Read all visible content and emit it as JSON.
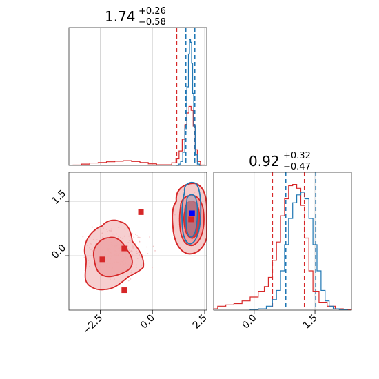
{
  "chart_data": {
    "type": "scatter",
    "subtype": "corner-plot",
    "colors": {
      "red": "#d62728",
      "blue": "#1f77b4",
      "red_fill": "#eea6a7",
      "blue_fill": "#8bb8d8",
      "grid": "#cccccc"
    },
    "panels": [
      {
        "id": "hist_param1",
        "type": "histogram",
        "title": {
          "value": "1.74",
          "upper": "+0.26",
          "lower": "−0.58"
        },
        "xlim": [
          -4.0,
          2.6
        ],
        "grid": true,
        "quantile_lines": {
          "red": [
            1.16,
            2.0
          ],
          "blue": [
            1.6,
            2.03
          ]
        },
        "series": [
          {
            "color": "red",
            "x": [
              -3.6,
              -3.2,
              -2.8,
              -2.4,
              -2.0,
              -1.6,
              -1.2,
              -0.8,
              -0.4,
              0.0,
              0.4,
              0.8,
              1.05,
              1.2,
              1.35,
              1.5,
              1.6,
              1.7,
              1.8,
              1.9,
              2.0,
              2.1,
              2.2,
              2.4
            ],
            "y": [
              0.003,
              0.01,
              0.018,
              0.022,
              0.028,
              0.032,
              0.036,
              0.03,
              0.022,
              0.012,
              0.005,
              0.005,
              0.02,
              0.05,
              0.11,
              0.2,
              0.31,
              0.4,
              0.45,
              0.42,
              0.3,
              0.12,
              0.03,
              0.003
            ]
          },
          {
            "color": "blue",
            "x": [
              1.2,
              1.3,
              1.4,
              1.5,
              1.6,
              1.7,
              1.75,
              1.8,
              1.85,
              1.9,
              1.95,
              2.0,
              2.1,
              2.2,
              2.3
            ],
            "y": [
              0.0,
              0.01,
              0.03,
              0.1,
              0.28,
              0.6,
              0.85,
              0.96,
              0.94,
              0.78,
              0.55,
              0.3,
              0.08,
              0.01,
              0.0
            ]
          }
        ]
      },
      {
        "id": "hist_param2",
        "type": "histogram",
        "title": {
          "value": "0.92",
          "upper": "+0.32",
          "lower": "−0.47"
        },
        "xlim": [
          -1.0,
          2.4
        ],
        "xticks": [
          "0.0",
          "1.5"
        ],
        "grid": true,
        "quantile_lines": {
          "red": [
            0.45,
            1.24
          ],
          "blue": [
            0.78,
            1.52
          ]
        },
        "series": [
          {
            "color": "red",
            "x": [
              -1.0,
              -0.8,
              -0.6,
              -0.4,
              -0.2,
              0.0,
              0.2,
              0.3,
              0.4,
              0.5,
              0.6,
              0.7,
              0.8,
              0.9,
              1.0,
              1.1,
              1.2,
              1.3,
              1.4,
              1.5,
              1.7,
              1.9,
              2.1,
              2.3
            ],
            "y": [
              0.01,
              0.03,
              0.04,
              0.05,
              0.07,
              0.1,
              0.14,
              0.18,
              0.25,
              0.38,
              0.52,
              0.72,
              0.85,
              0.95,
              0.96,
              0.93,
              0.8,
              0.55,
              0.3,
              0.14,
              0.06,
              0.03,
              0.01,
              0.005
            ]
          },
          {
            "color": "blue",
            "x": [
              0.0,
              0.2,
              0.4,
              0.5,
              0.6,
              0.7,
              0.8,
              0.9,
              1.0,
              1.1,
              1.2,
              1.3,
              1.4,
              1.5,
              1.6,
              1.7,
              1.8,
              1.9,
              2.0,
              2.2
            ],
            "y": [
              0.005,
              0.01,
              0.03,
              0.08,
              0.15,
              0.3,
              0.5,
              0.7,
              0.82,
              0.88,
              0.9,
              0.85,
              0.7,
              0.5,
              0.3,
              0.15,
              0.07,
              0.03,
              0.01,
              0.005
            ]
          }
        ]
      },
      {
        "id": "joint",
        "type": "contour-scatter",
        "xlim": [
          -4.0,
          2.6
        ],
        "ylim": [
          -1.5,
          2.3
        ],
        "xticks": [
          "−2.5",
          "0.0",
          "2.5"
        ],
        "yticks": [
          "0.0",
          "1.5"
        ],
        "grid": true,
        "red_markers": [
          [
            -2.4,
            -0.1
          ],
          [
            -1.35,
            0.2
          ],
          [
            -1.35,
            -0.95
          ],
          [
            -0.55,
            1.2
          ],
          [
            1.85,
            1.0
          ]
        ],
        "blue_marker": [
          1.9,
          1.17
        ]
      }
    ]
  }
}
